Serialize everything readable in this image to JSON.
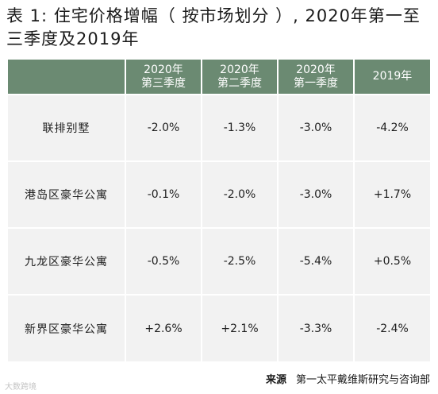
{
  "title": "表 1: 住宅价格增幅（ 按市场划分 ）, 2020年第一至三季度及2019年",
  "table": {
    "headers": [
      {
        "line1": "2020年",
        "line2": "第三季度"
      },
      {
        "line1": "2020年",
        "line2": "第二季度"
      },
      {
        "line1": "2020年",
        "line2": "第一季度"
      },
      {
        "line1": "2019年",
        "line2": ""
      }
    ],
    "rows": [
      {
        "label": "联排别墅",
        "values": [
          "-2.0%",
          "-1.3%",
          "-3.0%",
          "-4.2%"
        ]
      },
      {
        "label": "港岛区豪华公寓",
        "values": [
          "-0.1%",
          "-2.0%",
          "-3.0%",
          "+1.7%"
        ]
      },
      {
        "label": "九龙区豪华公寓",
        "values": [
          "-0.5%",
          "-2.5%",
          "-5.4%",
          "+0.5%"
        ]
      },
      {
        "label": "新界区豪华公寓",
        "values": [
          "+2.6%",
          "+2.1%",
          "-3.3%",
          "-2.4%"
        ]
      }
    ]
  },
  "source": {
    "label": "来源",
    "text": "第一太平戴维斯研究与咨询部"
  },
  "watermark": "大数跨境"
}
